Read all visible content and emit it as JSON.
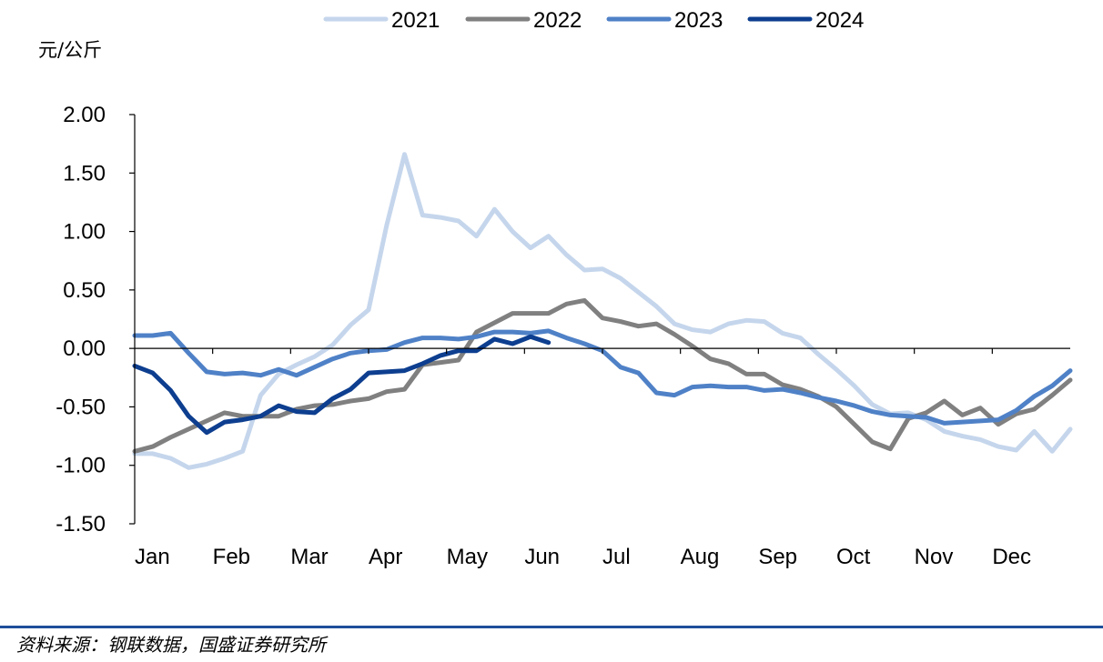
{
  "unit_label": "元/公斤",
  "source": "资料来源：钢联数据，国盛证券研究所",
  "colors": {
    "axis": "#000000",
    "footer_rule": "#1F4E9A"
  },
  "chart_data": {
    "type": "line",
    "title": "",
    "ylabel": "元/公斤",
    "xlabel": "",
    "ylim": [
      -1.5,
      2.0
    ],
    "yticks": [
      2.0,
      1.5,
      1.0,
      0.5,
      0.0,
      -0.5,
      -1.0,
      -1.5
    ],
    "ytick_labels": [
      "2.00",
      "1.50",
      "1.00",
      "0.50",
      "0.00",
      "-0.50",
      "-1.00",
      "-1.50"
    ],
    "categories": [
      "Jan",
      "Feb",
      "Mar",
      "Apr",
      "May",
      "Jun",
      "Jul",
      "Aug",
      "Sep",
      "Oct",
      "Nov",
      "Dec"
    ],
    "x_unit": "week",
    "xlim": [
      1,
      53
    ],
    "legend_position": "top",
    "grid": false,
    "series": [
      {
        "name": "2021",
        "color": "#C5D6EC",
        "x": [
          1,
          2,
          3,
          4,
          5,
          6,
          7,
          8,
          9,
          10,
          11,
          12,
          13,
          14,
          15,
          16,
          17,
          18,
          19,
          20,
          21,
          22,
          23,
          24,
          25,
          26,
          27,
          28,
          29,
          30,
          31,
          32,
          33,
          34,
          35,
          36,
          37,
          38,
          39,
          40,
          41,
          42,
          43,
          44,
          45,
          46,
          47,
          48,
          49,
          50,
          51,
          52,
          53
        ],
        "values": [
          -0.9,
          -0.9,
          -0.94,
          -1.02,
          -0.99,
          -0.94,
          -0.88,
          -0.4,
          -0.22,
          -0.14,
          -0.07,
          0.03,
          0.2,
          0.33,
          1.05,
          1.66,
          1.14,
          1.12,
          1.09,
          0.96,
          1.19,
          1.0,
          0.86,
          0.96,
          0.8,
          0.67,
          0.68,
          0.6,
          0.48,
          0.36,
          0.21,
          0.16,
          0.14,
          0.21,
          0.24,
          0.23,
          0.13,
          0.09,
          -0.05,
          -0.18,
          -0.32,
          -0.48,
          -0.56,
          -0.55,
          -0.61,
          -0.71,
          -0.75,
          -0.78,
          -0.84,
          -0.87,
          -0.71,
          -0.88,
          -0.69
        ]
      },
      {
        "name": "2022",
        "color": "#808080",
        "x": [
          1,
          2,
          3,
          4,
          5,
          6,
          7,
          8,
          9,
          10,
          11,
          12,
          13,
          14,
          15,
          16,
          17,
          18,
          19,
          20,
          21,
          22,
          23,
          24,
          25,
          26,
          27,
          28,
          29,
          30,
          31,
          32,
          33,
          34,
          35,
          36,
          37,
          38,
          39,
          40,
          41,
          42,
          43,
          44,
          45,
          46,
          47,
          48,
          49,
          50,
          51,
          52,
          53
        ],
        "values": [
          -0.88,
          -0.84,
          -0.76,
          -0.69,
          -0.62,
          -0.55,
          -0.58,
          -0.58,
          -0.58,
          -0.52,
          -0.49,
          -0.48,
          -0.45,
          -0.43,
          -0.37,
          -0.35,
          -0.14,
          -0.12,
          -0.1,
          0.14,
          0.22,
          0.3,
          0.3,
          0.3,
          0.38,
          0.41,
          0.26,
          0.23,
          0.19,
          0.21,
          0.12,
          0.02,
          -0.09,
          -0.13,
          -0.22,
          -0.22,
          -0.31,
          -0.35,
          -0.41,
          -0.5,
          -0.65,
          -0.8,
          -0.86,
          -0.6,
          -0.55,
          -0.45,
          -0.57,
          -0.51,
          -0.65,
          -0.56,
          -0.52,
          -0.4,
          -0.27
        ]
      },
      {
        "name": "2023",
        "color": "#4F81C7",
        "x": [
          1,
          2,
          3,
          4,
          5,
          6,
          7,
          8,
          9,
          10,
          11,
          12,
          13,
          14,
          15,
          16,
          17,
          18,
          19,
          20,
          21,
          22,
          23,
          24,
          25,
          26,
          27,
          28,
          29,
          30,
          31,
          32,
          33,
          34,
          35,
          36,
          37,
          38,
          39,
          40,
          41,
          42,
          43,
          44,
          45,
          46,
          47,
          48,
          49,
          50,
          51,
          52,
          53
        ],
        "values": [
          0.11,
          0.11,
          0.13,
          -0.04,
          -0.2,
          -0.22,
          -0.21,
          -0.23,
          -0.18,
          -0.23,
          -0.16,
          -0.09,
          -0.04,
          -0.02,
          -0.01,
          0.05,
          0.09,
          0.09,
          0.08,
          0.1,
          0.14,
          0.14,
          0.13,
          0.15,
          0.09,
          0.04,
          -0.02,
          -0.16,
          -0.21,
          -0.38,
          -0.4,
          -0.33,
          -0.32,
          -0.33,
          -0.33,
          -0.36,
          -0.35,
          -0.38,
          -0.42,
          -0.45,
          -0.49,
          -0.54,
          -0.57,
          -0.58,
          -0.59,
          -0.64,
          -0.63,
          -0.62,
          -0.61,
          -0.53,
          -0.41,
          -0.32,
          -0.19
        ]
      },
      {
        "name": "2024",
        "color": "#0D3E8F",
        "x": [
          1,
          2,
          3,
          4,
          5,
          6,
          7,
          8,
          9,
          10,
          11,
          12,
          13,
          14,
          15,
          16,
          17,
          18,
          19,
          20,
          21,
          22,
          23,
          24,
          25
        ],
        "values": [
          -0.15,
          -0.21,
          -0.36,
          -0.58,
          -0.72,
          -0.63,
          -0.61,
          -0.58,
          -0.49,
          -0.54,
          -0.55,
          -0.43,
          -0.35,
          -0.21,
          -0.2,
          -0.19,
          -0.13,
          -0.06,
          -0.02,
          -0.02,
          0.08,
          0.04,
          0.1,
          0.05,
          null
        ]
      }
    ]
  }
}
